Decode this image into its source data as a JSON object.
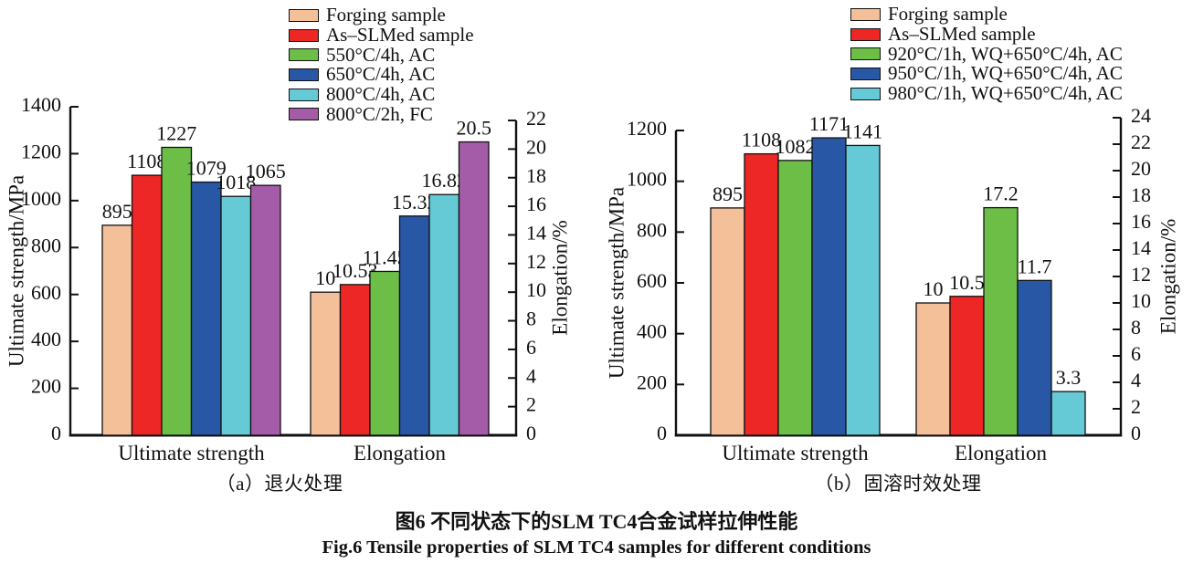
{
  "figure": {
    "caption_zh": "图6  不同状态下的SLM TC4合金试样拉伸性能",
    "caption_en": "Fig.6  Tensile properties of SLM TC4 samples for different conditions"
  },
  "chart_data": [
    {
      "type": "bar",
      "panel": "a",
      "panel_caption": "（a）退火处理",
      "categories": [
        "Ultimate strength",
        "Elongation"
      ],
      "axis_assignment": [
        "left",
        "right"
      ],
      "left_axis": {
        "label": "Ultimate strength/MPa",
        "min": 0,
        "max": 1400,
        "step": 200
      },
      "right_axis": {
        "label": "Elongation/%",
        "min": 0,
        "max": 22,
        "step": 2
      },
      "grid": false,
      "legend_position": "top",
      "series": [
        {
          "name": "Forging sample",
          "color": "#F4C09A",
          "values": [
            895,
            10
          ]
        },
        {
          "name": "As–SLMed sample",
          "color": "#EC2726",
          "values": [
            1108,
            10.53
          ]
        },
        {
          "name": "550°C/4h, AC",
          "color": "#6CBE47",
          "values": [
            1227,
            11.45
          ]
        },
        {
          "name": "650°C/4h, AC",
          "color": "#2857A6",
          "values": [
            1079,
            15.32
          ]
        },
        {
          "name": "800°C/4h, AC",
          "color": "#66CAD6",
          "values": [
            1018,
            16.82
          ]
        },
        {
          "name": "800°C/2h, FC",
          "color": "#A55CA8",
          "values": [
            1065,
            20.5
          ]
        }
      ]
    },
    {
      "type": "bar",
      "panel": "b",
      "panel_caption": "（b）固溶时效处理",
      "categories": [
        "Ultimate strength",
        "Elongation"
      ],
      "axis_assignment": [
        "left",
        "right"
      ],
      "left_axis": {
        "label": "Ultimate strength/MPa",
        "min": 0,
        "max": 1200,
        "step": 200
      },
      "right_axis": {
        "label": "Elongation/%",
        "min": 0,
        "max": 24,
        "step": 2
      },
      "grid": false,
      "legend_position": "top",
      "series": [
        {
          "name": "Forging sample",
          "color": "#F4C09A",
          "values": [
            895,
            10
          ]
        },
        {
          "name": "As–SLMed sample",
          "color": "#EC2726",
          "values": [
            1108,
            10.5
          ]
        },
        {
          "name": "920°C/1h, WQ+650°C/4h, AC",
          "color": "#6CBE47",
          "values": [
            1082,
            17.2
          ]
        },
        {
          "name": "950°C/1h, WQ+650°C/4h, AC",
          "color": "#2857A6",
          "values": [
            1171,
            11.7
          ]
        },
        {
          "name": "980°C/1h, WQ+650°C/4h, AC",
          "color": "#66CAD6",
          "values": [
            1141,
            3.3
          ]
        }
      ]
    }
  ]
}
